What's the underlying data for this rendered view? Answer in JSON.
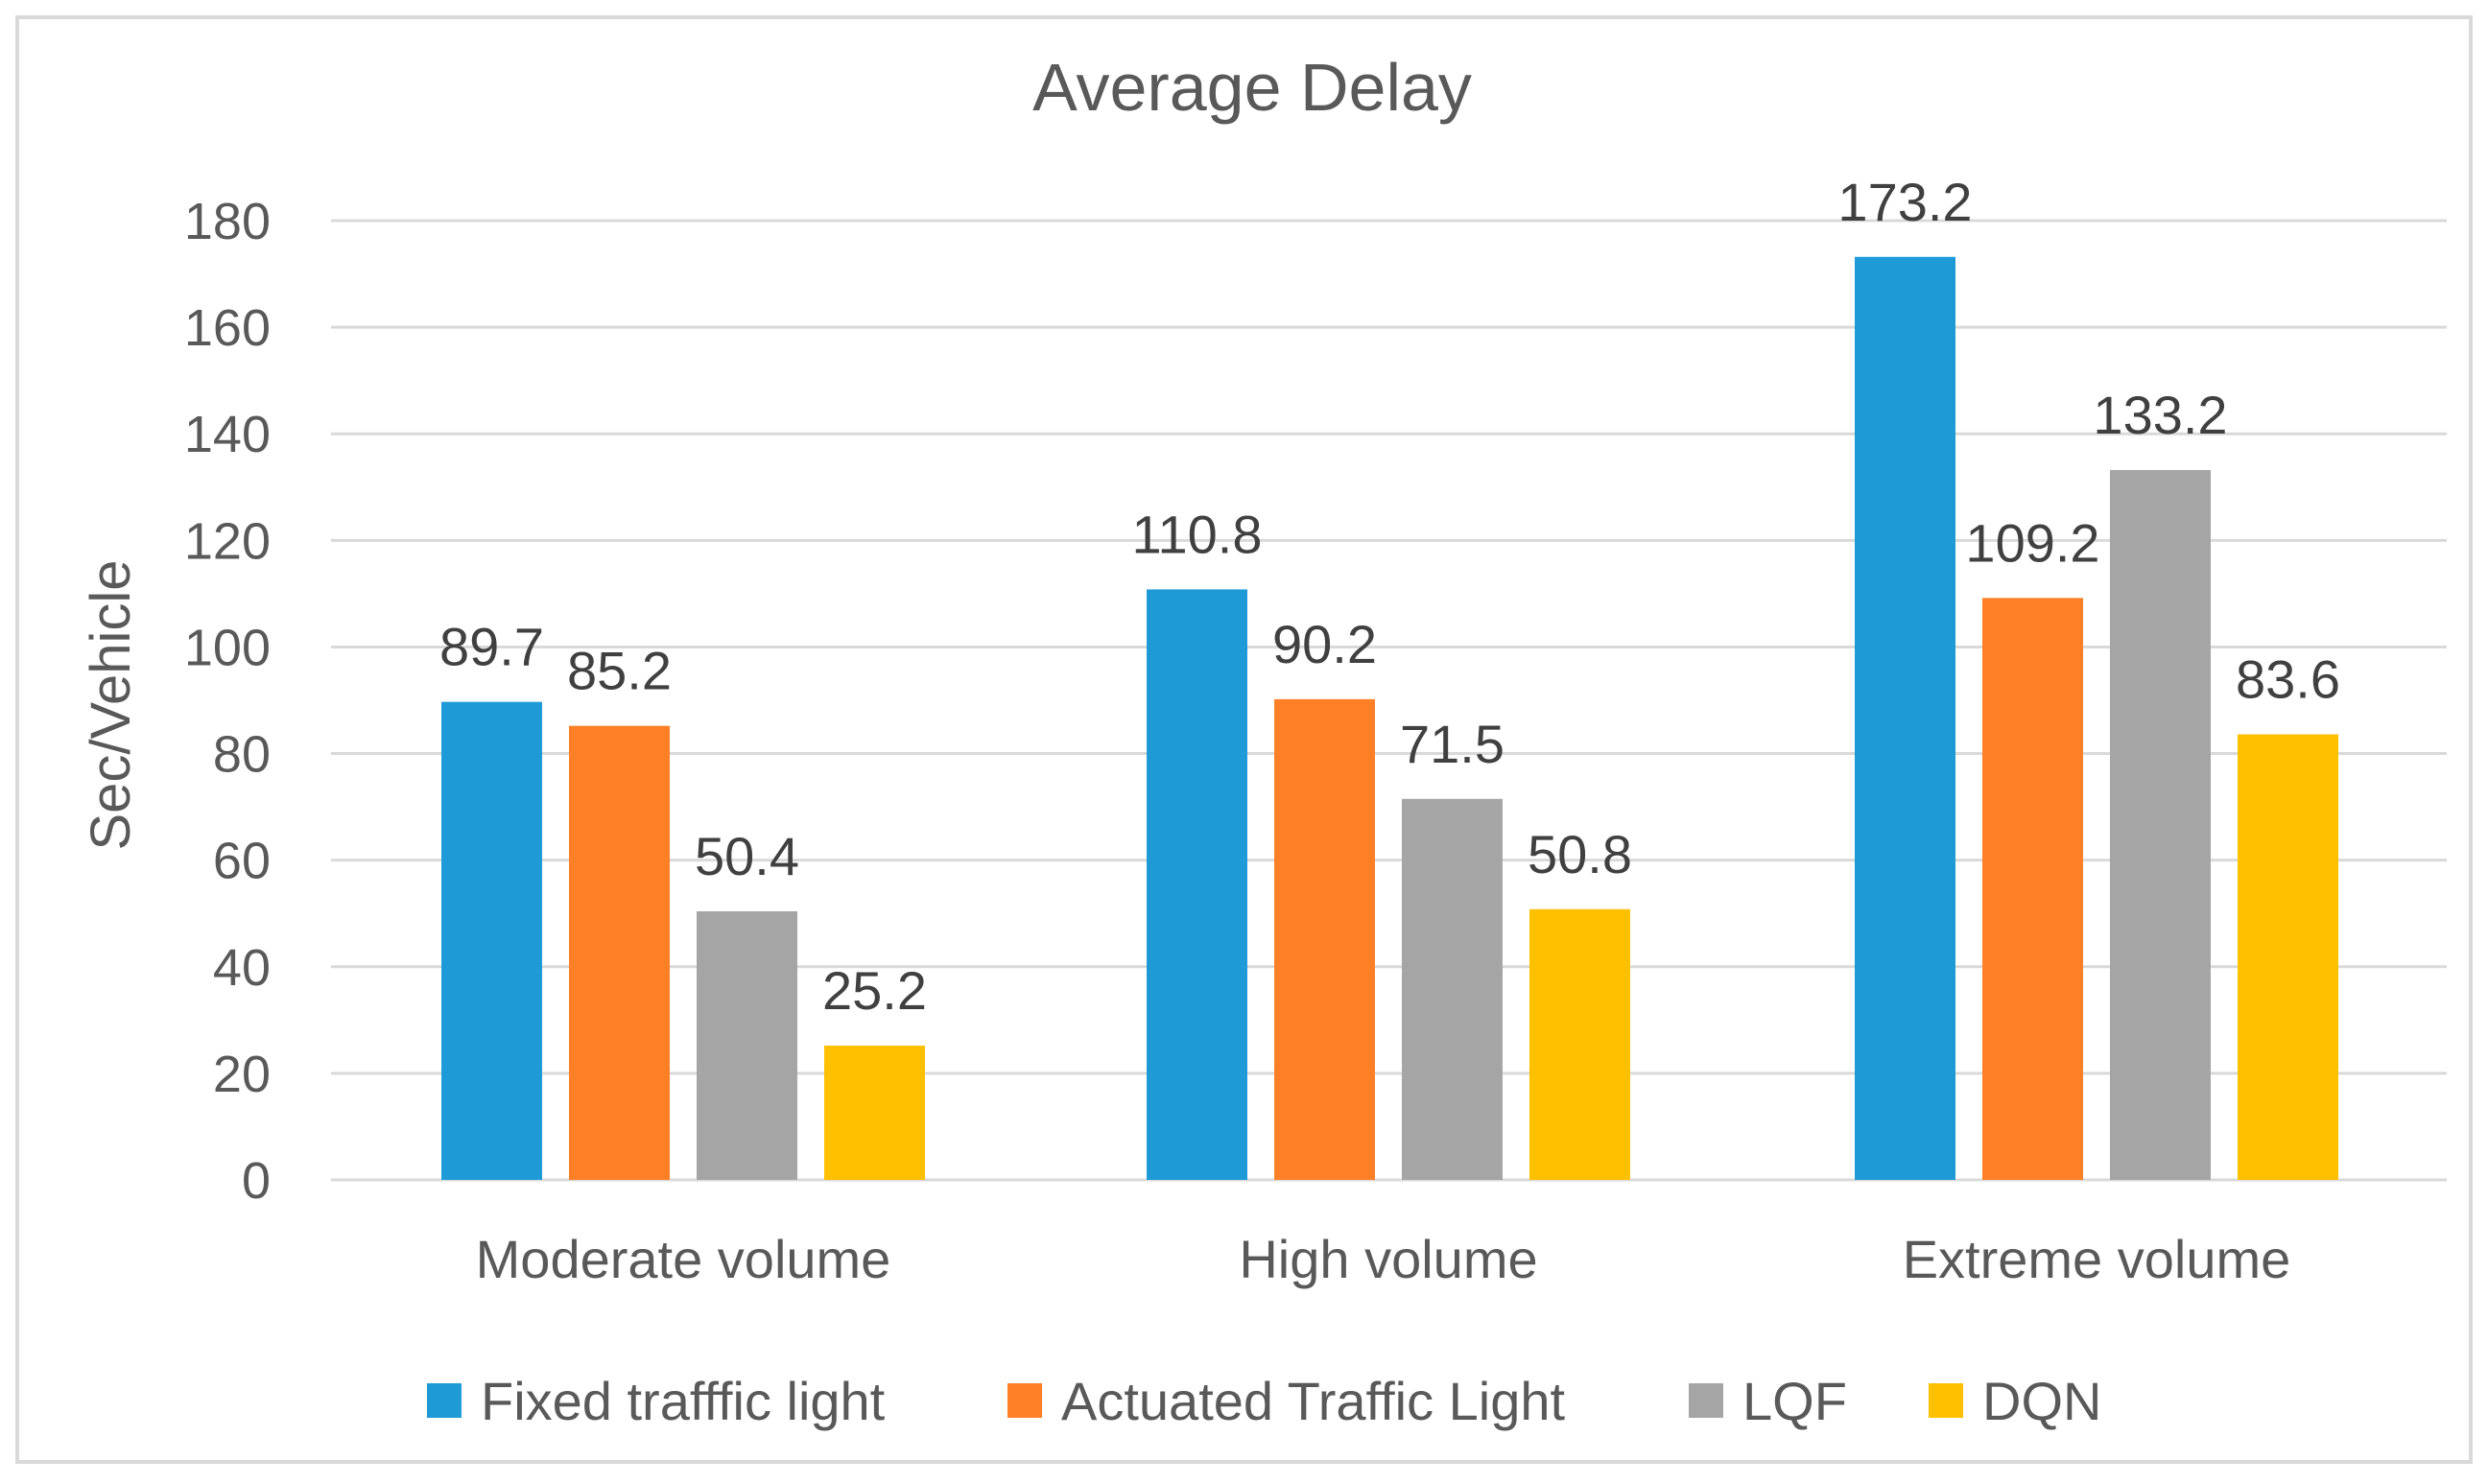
{
  "chart_data": {
    "type": "bar",
    "title": "Average Delay",
    "xlabel": "",
    "ylabel": "Sec/Vehicle",
    "ylim": [
      0,
      180
    ],
    "yticks": [
      0,
      20,
      40,
      60,
      80,
      100,
      120,
      140,
      160,
      180
    ],
    "grid": true,
    "legend_position": "bottom",
    "categories": [
      "Moderate volume",
      "High volume",
      "Extreme volume"
    ],
    "series": [
      {
        "name": "Fixed trafffic light",
        "color": "#1E9BD7",
        "values": [
          89.7,
          110.8,
          173.2
        ],
        "labels": [
          "89.7",
          "110.8",
          "173.2"
        ]
      },
      {
        "name": "Actuated Traffic Light",
        "color": "#FF7F27",
        "values": [
          85.2,
          90.2,
          109.2
        ],
        "labels": [
          "85.2",
          "90.2",
          "109.2"
        ]
      },
      {
        "name": "LQF",
        "color": "#A5A5A5",
        "values": [
          50.4,
          71.5,
          133.2
        ],
        "labels": [
          "50.4",
          "71.5",
          "133.2"
        ]
      },
      {
        "name": "DQN",
        "color": "#FFC000",
        "values": [
          25.2,
          50.8,
          83.6
        ],
        "labels": [
          "25.2",
          "50.8",
          "83.6"
        ]
      }
    ]
  }
}
